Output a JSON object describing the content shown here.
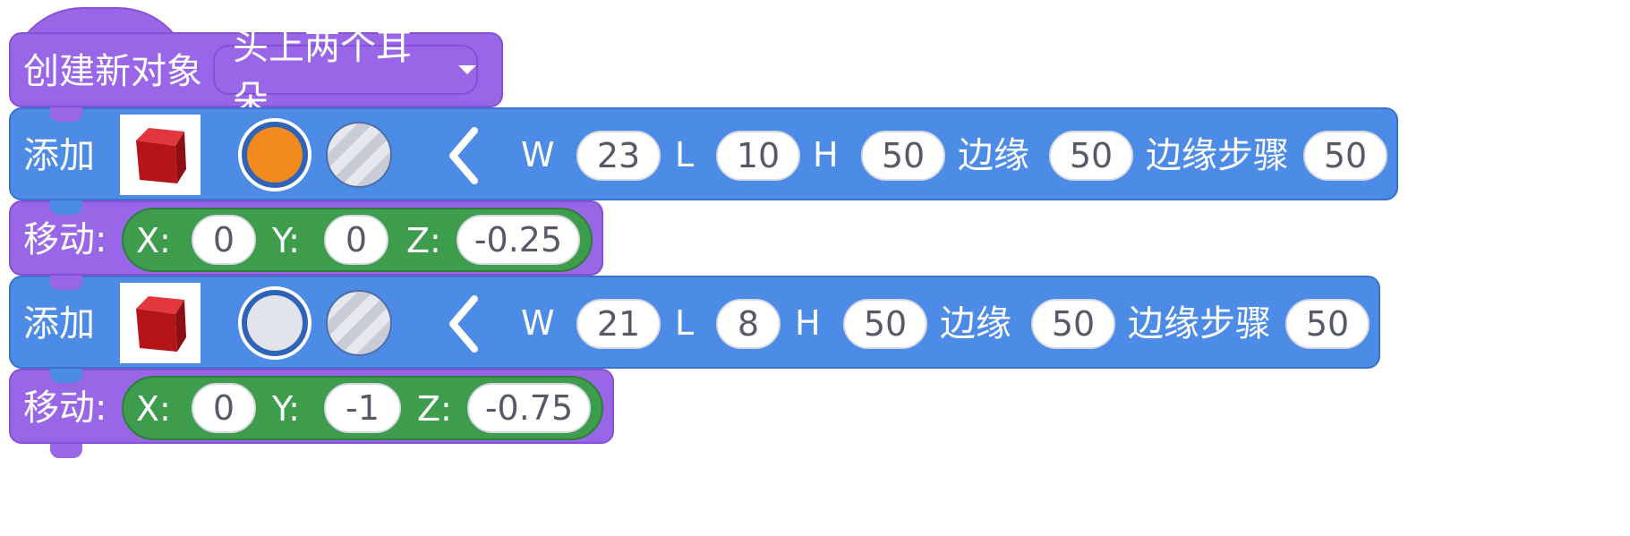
{
  "hat_block": {
    "label": "创建新对象",
    "dropdown_value": "头上两个耳朵"
  },
  "add_blocks": [
    {
      "label": "添加",
      "color_selected": "#f28a1e",
      "w_label": "W",
      "w": "23",
      "l_label": "L",
      "l": "10",
      "h_label": "H",
      "h": "50",
      "edge_label": "边缘",
      "edge": "50",
      "edge_step_label": "边缘步骤",
      "edge_step": "50"
    },
    {
      "label": "添加",
      "color_selected": "#e1e4ea",
      "w_label": "W",
      "w": "21",
      "l_label": "L",
      "l": "8",
      "h_label": "H",
      "h": "50",
      "edge_label": "边缘",
      "edge": "50",
      "edge_step_label": "边缘步骤",
      "edge_step": "50"
    }
  ],
  "move_blocks": [
    {
      "label": "移动:",
      "x_label": "X:",
      "x": "0",
      "y_label": "Y:",
      "y": "0",
      "z_label": "Z:",
      "z": "-0.25"
    },
    {
      "label": "移动:",
      "x_label": "X:",
      "x": "0",
      "y_label": "Y:",
      "y": "-1",
      "z_label": "Z:",
      "z": "-0.75"
    }
  ],
  "colors": {
    "looks_purple": "#9966e8",
    "motion_blue": "#4c8be6",
    "operator_green": "#3e9c4d",
    "cube_red": "#c4161c"
  },
  "icons": [
    "cube-icon",
    "chevron-left-icon",
    "dropdown-caret-icon"
  ]
}
